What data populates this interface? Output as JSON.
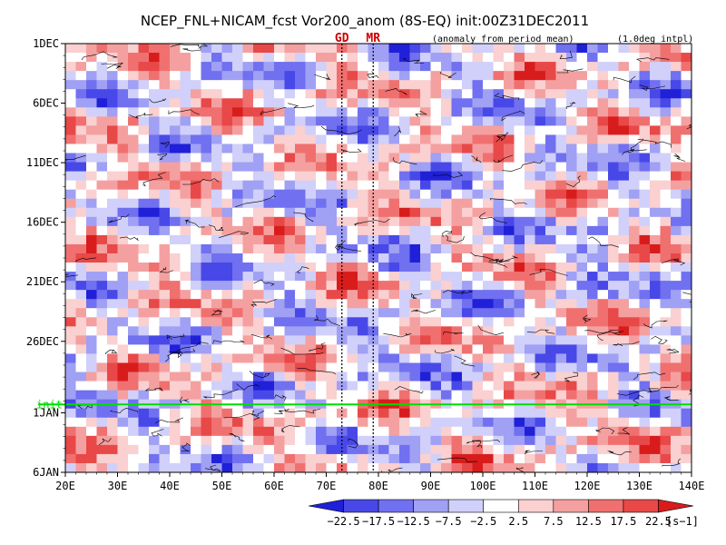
{
  "chart_data": {
    "type": "heatmap",
    "title": "NCEP_FNL+NICAM_fcst Vor200_anom (8S-EQ) init:00Z31DEC2011",
    "subtitle_left": "(anomaly from period mean)",
    "subtitle_right": "(1.0deg intpl)",
    "markers": [
      {
        "label": "GD",
        "x": 73
      },
      {
        "label": "MR",
        "x": 79
      }
    ],
    "init_label": "init",
    "init_day": 31,
    "x_ticks": [
      {
        "label": "20E",
        "v": 20
      },
      {
        "label": "30E",
        "v": 30
      },
      {
        "label": "40E",
        "v": 40
      },
      {
        "label": "50E",
        "v": 50
      },
      {
        "label": "60E",
        "v": 60
      },
      {
        "label": "70E",
        "v": 70
      },
      {
        "label": "80E",
        "v": 80
      },
      {
        "label": "90E",
        "v": 90
      },
      {
        "label": "100E",
        "v": 100
      },
      {
        "label": "110E",
        "v": 110
      },
      {
        "label": "120E",
        "v": 120
      },
      {
        "label": "130E",
        "v": 130
      },
      {
        "label": "140E",
        "v": 140
      }
    ],
    "y_ticks": [
      {
        "label": "1DEC",
        "v": 1
      },
      {
        "label": "6DEC",
        "v": 6
      },
      {
        "label": "11DEC",
        "v": 11
      },
      {
        "label": "16DEC",
        "v": 16
      },
      {
        "label": "21DEC",
        "v": 21
      },
      {
        "label": "26DEC",
        "v": 26
      },
      {
        "label": "1JAN",
        "v": 32
      },
      {
        "label": "6JAN",
        "v": 37
      }
    ],
    "xlim": [
      20,
      140
    ],
    "ylim": [
      1,
      37
    ],
    "colorbar": {
      "colors": [
        "#2020d8",
        "#4848e8",
        "#7070f0",
        "#a0a0f4",
        "#d0d0fa",
        "#ffffff",
        "#fad0d0",
        "#f4a0a0",
        "#f07070",
        "#e84848",
        "#d81c1c"
      ],
      "labels": [
        "−22.5",
        "−17.5",
        "−12.5",
        "−7.5",
        "−2.5",
        "2.5",
        "7.5",
        "12.5",
        "17.5",
        "22.5"
      ],
      "unit": "[s−1]"
    },
    "colors": {
      "init_line": "#00dd00",
      "marker_text": "#cc0000"
    }
  }
}
